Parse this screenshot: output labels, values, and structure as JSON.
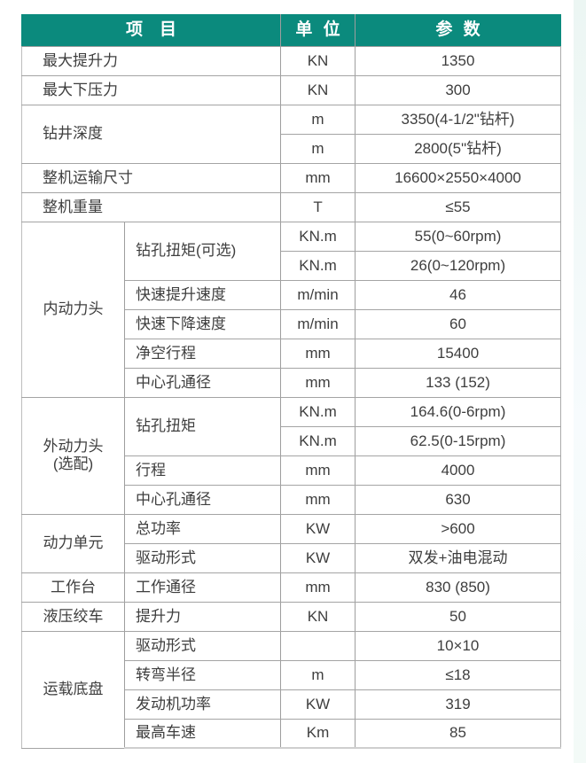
{
  "theme": {
    "header_bg": "#0b8a7d",
    "header_text": "#ffffff",
    "grid_line": "#9e9e9e",
    "body_text": "#3e3e3e",
    "side_strip": "#ecf6f3"
  },
  "header": {
    "item": "项　目",
    "unit": "单 位",
    "param": "参 数"
  },
  "rows": [
    {
      "item": "最大提升力",
      "unit": "KN",
      "param": "1350"
    },
    {
      "item": "最大下压力",
      "unit": "KN",
      "param": "300"
    },
    {
      "item": "钻井深度",
      "unit": "m",
      "param": "3350(4-1/2\"钻杆)"
    },
    {
      "unit": "m",
      "param": "2800(5\"钻杆)"
    },
    {
      "item": "整机运输尺寸",
      "unit": "mm",
      "param": "16600×2550×4000"
    },
    {
      "item": "整机重量",
      "unit": "T",
      "param": "≤55"
    },
    {
      "group": "内动力头",
      "sub": "钻孔扭矩(可选)",
      "unit": "KN.m",
      "param": "55(0~60rpm)"
    },
    {
      "unit": "KN.m",
      "param": "26(0~120rpm)"
    },
    {
      "sub": "快速提升速度",
      "unit": "m/min",
      "param": "46"
    },
    {
      "sub": "快速下降速度",
      "unit": "m/min",
      "param": "60"
    },
    {
      "sub": "净空行程",
      "unit": "mm",
      "param": "15400"
    },
    {
      "sub": "中心孔通径",
      "unit": "mm",
      "param": "133 (152)"
    },
    {
      "group": "外动力头",
      "group2": "(选配)",
      "sub": "钻孔扭矩",
      "unit": "KN.m",
      "param": "164.6(0-6rpm)"
    },
    {
      "unit": "KN.m",
      "param": "62.5(0-15rpm)"
    },
    {
      "sub": "行程",
      "unit": "mm",
      "param": "4000"
    },
    {
      "sub": "中心孔通径",
      "unit": "mm",
      "param": "630"
    },
    {
      "group": "动力单元",
      "sub": "总功率",
      "unit": "KW",
      "param": ">600"
    },
    {
      "sub": "驱动形式",
      "unit": "KW",
      "param": "双发+油电混动"
    },
    {
      "group": "工作台",
      "sub": "工作通径",
      "unit": "mm",
      "param": "830 (850)"
    },
    {
      "group": "液压绞车",
      "sub": "提升力",
      "unit": "KN",
      "param": "50"
    },
    {
      "group": "运载底盘",
      "sub": "驱动形式",
      "unit": "",
      "param": "10×10"
    },
    {
      "sub": "转弯半径",
      "unit": "m",
      "param": "≤18"
    },
    {
      "sub": "发动机功率",
      "unit": "KW",
      "param": "319"
    },
    {
      "sub": "最高车速",
      "unit": "Km",
      "param": "85"
    }
  ]
}
